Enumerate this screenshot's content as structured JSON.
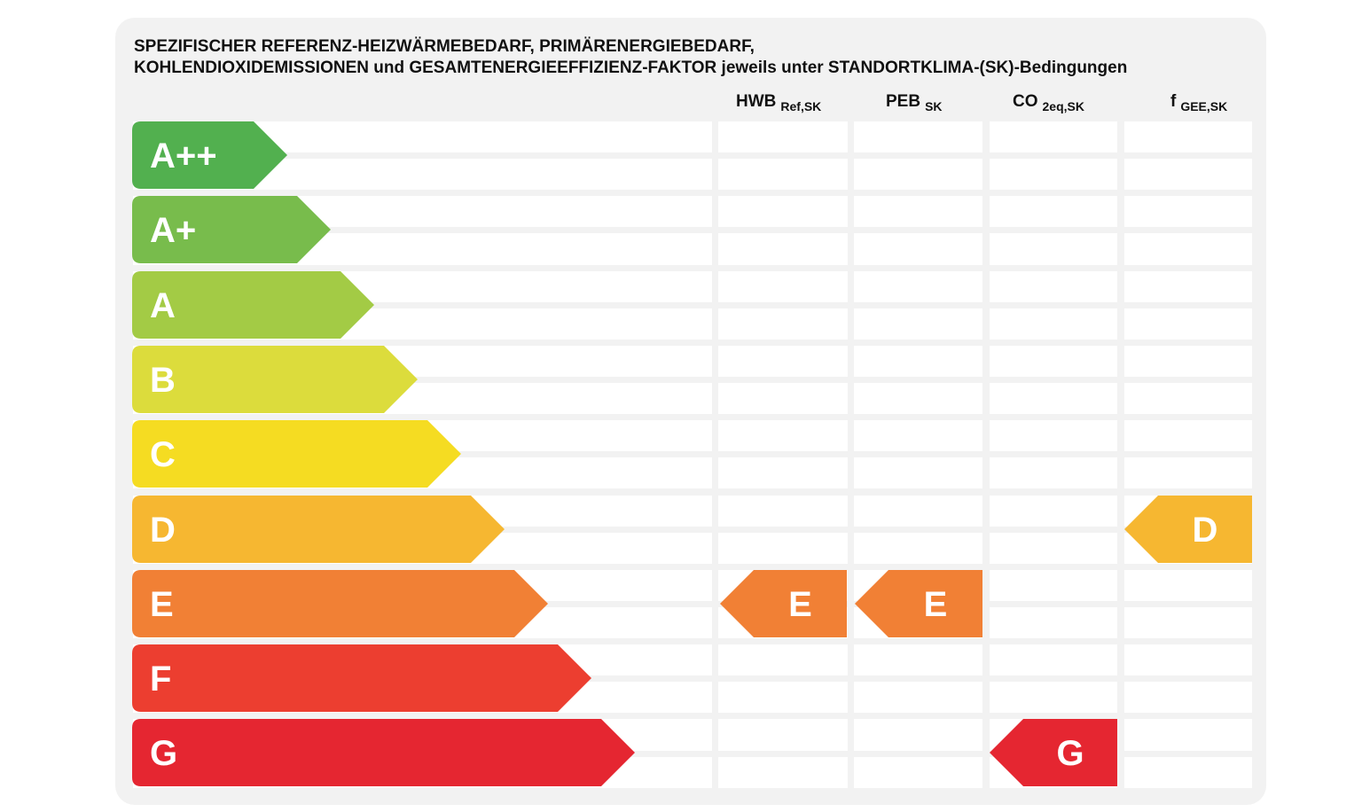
{
  "title": {
    "line1": "SPEZIFISCHER REFERENZ-HEIZWÄRMEBEDARF, PRIMÄRENERGIEBEDARF,",
    "line2": "KOHLENDIOXIDEMISSIONEN und GESAMTENERGIEEFFIZIENZ-FAKTOR jeweils unter STANDORTKLIMA-(SK)-Bedingungen"
  },
  "columns": [
    {
      "id": "hwb",
      "label": "HWB",
      "subscript": "Ref,SK",
      "rating": "E"
    },
    {
      "id": "peb",
      "label": "PEB",
      "subscript": "SK",
      "rating": "E"
    },
    {
      "id": "co2",
      "label": "CO",
      "subscript": "2eq,SK",
      "rating": "G"
    },
    {
      "id": "fgee",
      "label": "f",
      "subscript": "GEE,SK",
      "rating": "D"
    }
  ],
  "classes": [
    {
      "label": "A++",
      "color": "#52b04f"
    },
    {
      "label": "A+",
      "color": "#78bc4c"
    },
    {
      "label": "A",
      "color": "#a3cb45"
    },
    {
      "label": "B",
      "color": "#dcdc3c"
    },
    {
      "label": "C",
      "color": "#f5dc22"
    },
    {
      "label": "D",
      "color": "#f6b731"
    },
    {
      "label": "E",
      "color": "#f18035"
    },
    {
      "label": "F",
      "color": "#ec3e30"
    },
    {
      "label": "G",
      "color": "#e52631"
    }
  ]
}
